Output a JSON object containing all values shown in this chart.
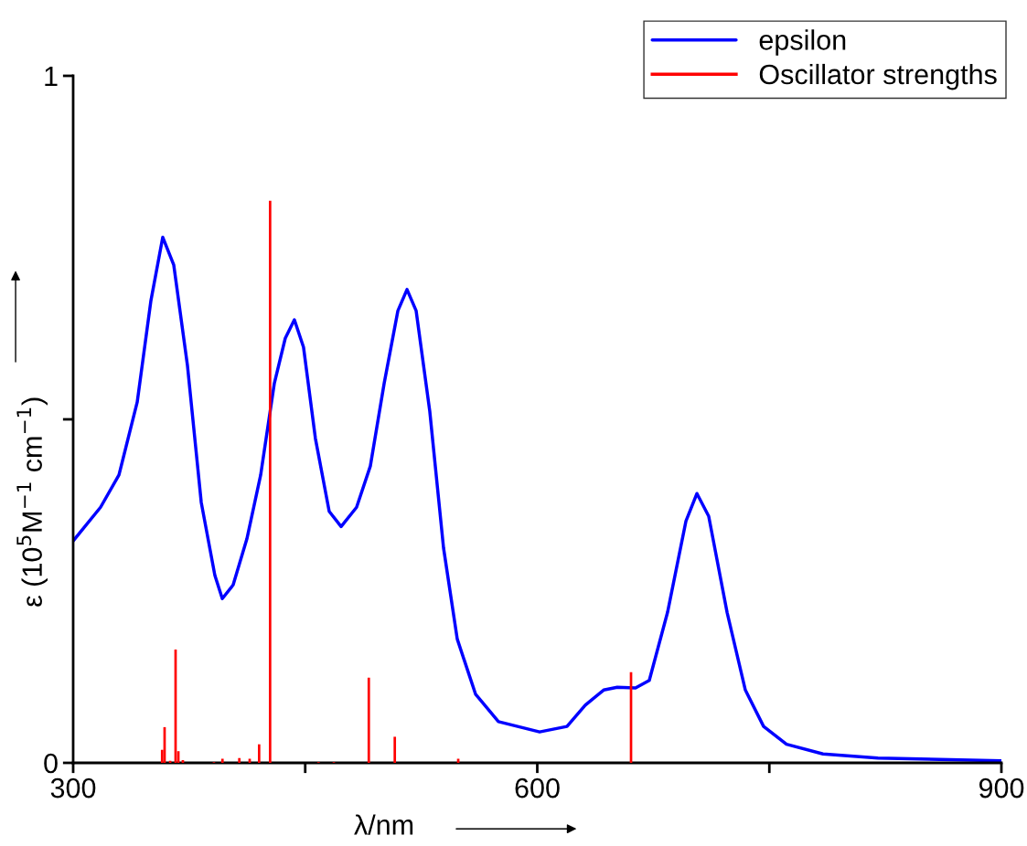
{
  "chart_data": {
    "type": "line",
    "xlabel": "λ/nm",
    "ylabel": "ε (10$^{5}$M$^{−1}$ cm$^{−1}$)",
    "xlim": [
      300,
      900
    ],
    "xticks": [
      300,
      {
        "value": 450,
        "label": null
      },
      600,
      {
        "value": 750,
        "label": null
      },
      900
    ],
    "ylim": [
      0,
      1
    ],
    "yticks": [
      0,
      {
        "value": 0.5,
        "label": null
      },
      1
    ],
    "grid": false,
    "legend": "top right",
    "series": [
      {
        "name": "epsilon",
        "color": "#0000ff",
        "x": [
          300,
          317.7,
          329.6,
          341.4,
          350.2,
          357.9,
          365.0,
          373.9,
          382.8,
          391.6,
          396.4,
          403.4,
          412.3,
          421.2,
          430.0,
          437.1,
          443.0,
          448.9,
          456.6,
          465.5,
          473.2,
          483.2,
          492.1,
          501.0,
          509.9,
          515.8,
          521.7,
          530.5,
          539.4,
          548.3,
          560.1,
          574.9,
          601.5,
          619.2,
          631.0,
          642.9,
          651.7,
          663.5,
          672.4,
          684.2,
          696.1,
          703.2,
          710.8,
          722.7,
          734.5,
          746.3,
          761.1,
          784.7,
          820.2,
          900
        ],
        "values": [
          0.323,
          0.372,
          0.419,
          0.525,
          0.672,
          0.765,
          0.725,
          0.578,
          0.379,
          0.273,
          0.239,
          0.259,
          0.326,
          0.419,
          0.552,
          0.618,
          0.645,
          0.605,
          0.472,
          0.366,
          0.344,
          0.372,
          0.432,
          0.552,
          0.658,
          0.689,
          0.658,
          0.512,
          0.313,
          0.18,
          0.1,
          0.06,
          0.045,
          0.053,
          0.084,
          0.106,
          0.11,
          0.109,
          0.12,
          0.219,
          0.352,
          0.392,
          0.359,
          0.219,
          0.106,
          0.053,
          0.027,
          0.013,
          0.007,
          0.003
        ]
      },
      {
        "name": "Oscillator strengths",
        "color": "#ff0000",
        "type": "bar",
        "x": [
          357.5,
          359.1,
          362.7,
          366.2,
          368.0,
          370.9,
          391.0,
          396.5,
          407.4,
          414.1,
          420.2,
          427.3,
          458.6,
          468.5,
          491.1,
          507.9,
          548.9,
          660.6
        ],
        "values": [
          0.019,
          0.052,
          0.003,
          0.165,
          0.017,
          0.004,
          0.001,
          0.006,
          0.007,
          0.006,
          0.027,
          0.818,
          0.001,
          0.001,
          0.124,
          0.038,
          0.006,
          0.132
        ]
      }
    ]
  }
}
